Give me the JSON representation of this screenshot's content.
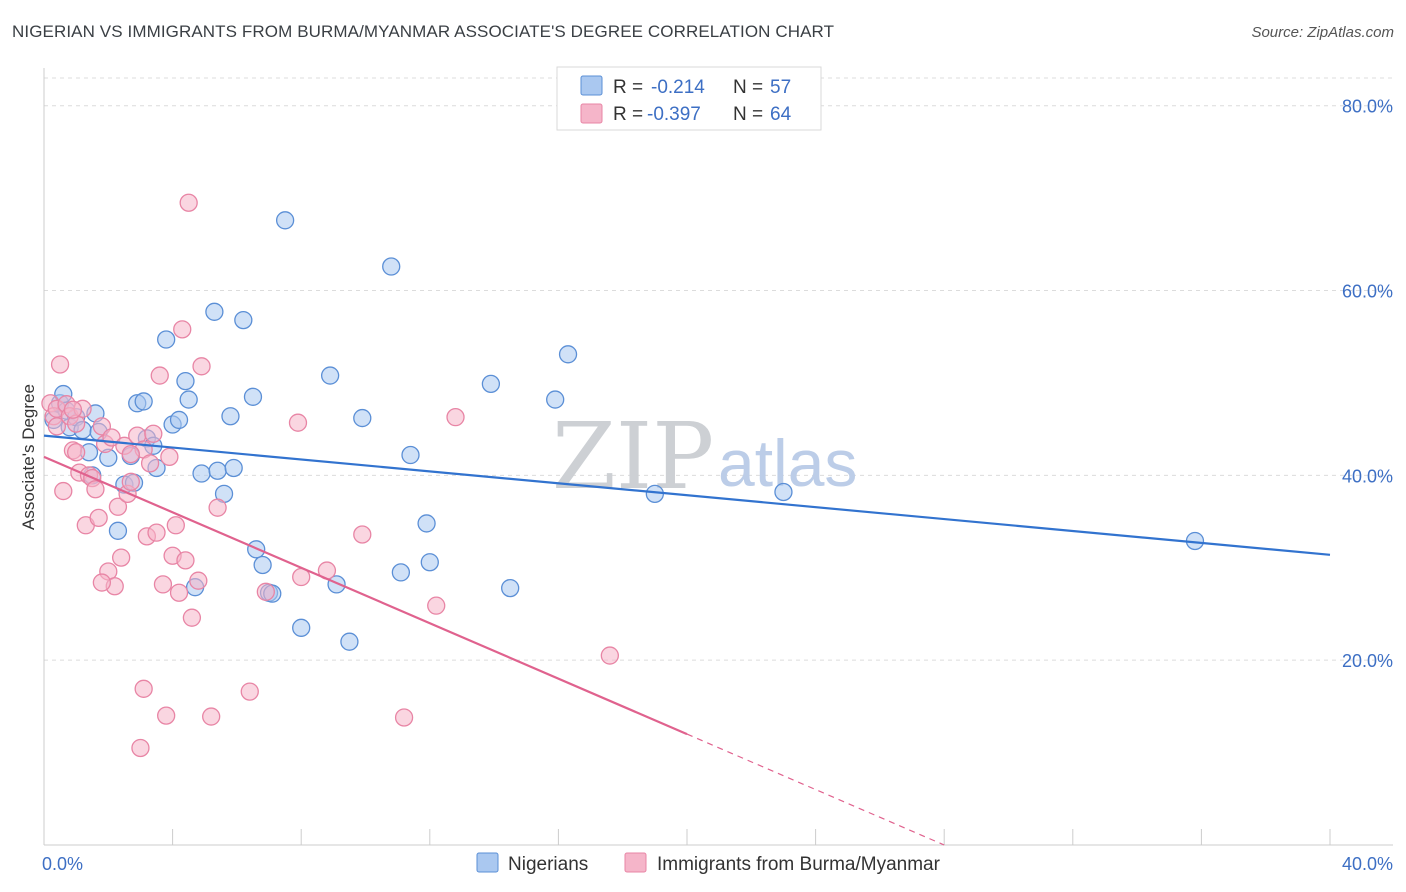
{
  "title": "NIGERIAN VS IMMIGRANTS FROM BURMA/MYANMAR ASSOCIATE'S DEGREE CORRELATION CHART",
  "source": "Source: ZipAtlas.com",
  "watermark": {
    "part1": "ZIP",
    "part2": "atlas"
  },
  "colors": {
    "blue_fill": "#aac8f0",
    "blue_stroke": "#5b8fd6",
    "blue_line": "#3273cf",
    "pink_fill": "#f5b5c9",
    "pink_stroke": "#e885a5",
    "pink_line": "#e0628e",
    "axis_text": "#3d6fc4",
    "grid": "#dcdcdc"
  },
  "chart_data": {
    "type": "scatter",
    "xlabel": "",
    "ylabel": "Associate's Degree",
    "xlim": [
      0,
      40
    ],
    "ylim": [
      0,
      83
    ],
    "x_tick_labels": [
      "0.0%",
      "40.0%"
    ],
    "y_ticks": [
      20,
      40,
      60,
      80
    ],
    "y_tick_labels": [
      "20.0%",
      "40.0%",
      "60.0%",
      "80.0%"
    ],
    "grid": true,
    "legend": {
      "position": "top-center",
      "rows": [
        {
          "r_label": "R =",
          "r_value": "-0.214",
          "n_label": "N =",
          "n_value": "57"
        },
        {
          "r_label": "R =",
          "r_value": "-0.397",
          "n_label": "N =",
          "n_value": "64"
        }
      ]
    },
    "series": [
      {
        "name": "Nigerians",
        "color": "blue",
        "trend": {
          "x0": 0.0,
          "y0": 44.3,
          "x1": 40.0,
          "y1": 31.4,
          "solid_until": 40.0
        },
        "points": [
          [
            0.3,
            46.0
          ],
          [
            0.5,
            47.8
          ],
          [
            0.6,
            48.8
          ],
          [
            0.7,
            47.0
          ],
          [
            0.8,
            45.2
          ],
          [
            1.0,
            46.3
          ],
          [
            1.2,
            44.9
          ],
          [
            1.4,
            42.5
          ],
          [
            1.5,
            40.0
          ],
          [
            1.7,
            44.7
          ],
          [
            2.0,
            41.9
          ],
          [
            2.3,
            34.0
          ],
          [
            2.5,
            39.0
          ],
          [
            2.7,
            42.1
          ],
          [
            2.9,
            47.8
          ],
          [
            3.1,
            48.0
          ],
          [
            3.2,
            44.0
          ],
          [
            3.4,
            43.2
          ],
          [
            3.5,
            40.8
          ],
          [
            3.8,
            54.7
          ],
          [
            4.0,
            45.5
          ],
          [
            4.2,
            46.0
          ],
          [
            4.4,
            50.2
          ],
          [
            4.5,
            48.2
          ],
          [
            4.9,
            40.2
          ],
          [
            5.3,
            57.7
          ],
          [
            5.4,
            40.5
          ],
          [
            5.6,
            38.0
          ],
          [
            5.8,
            46.4
          ],
          [
            5.9,
            40.8
          ],
          [
            6.2,
            56.8
          ],
          [
            6.5,
            48.5
          ],
          [
            6.6,
            32.0
          ],
          [
            6.8,
            30.3
          ],
          [
            7.0,
            27.3
          ],
          [
            7.1,
            27.2
          ],
          [
            7.5,
            67.6
          ],
          [
            8.0,
            23.5
          ],
          [
            8.9,
            50.8
          ],
          [
            9.1,
            28.2
          ],
          [
            9.5,
            22.0
          ],
          [
            9.9,
            46.2
          ],
          [
            10.8,
            62.6
          ],
          [
            11.1,
            29.5
          ],
          [
            11.4,
            42.2
          ],
          [
            11.9,
            34.8
          ],
          [
            12.0,
            30.6
          ],
          [
            13.9,
            49.9
          ],
          [
            14.5,
            27.8
          ],
          [
            15.9,
            48.2
          ],
          [
            16.3,
            53.1
          ],
          [
            19.0,
            38.0
          ],
          [
            23.0,
            38.2
          ],
          [
            35.8,
            32.9
          ],
          [
            2.8,
            39.2
          ],
          [
            1.6,
            46.7
          ],
          [
            4.7,
            27.9
          ]
        ]
      },
      {
        "name": "Immigrants from Burma/Myanmar",
        "color": "pink",
        "trend": {
          "x0": 0.0,
          "y0": 42.0,
          "x1": 40.0,
          "y1": -18.0,
          "solid_until": 20.0
        },
        "points": [
          [
            0.2,
            47.8
          ],
          [
            0.3,
            46.4
          ],
          [
            0.4,
            47.2
          ],
          [
            0.4,
            45.3
          ],
          [
            0.5,
            52.0
          ],
          [
            0.6,
            38.3
          ],
          [
            0.7,
            47.7
          ],
          [
            0.8,
            46.4
          ],
          [
            0.9,
            42.7
          ],
          [
            1.0,
            45.6
          ],
          [
            1.1,
            40.3
          ],
          [
            1.2,
            47.2
          ],
          [
            1.3,
            34.6
          ],
          [
            1.4,
            40.0
          ],
          [
            1.5,
            39.7
          ],
          [
            1.6,
            38.5
          ],
          [
            1.7,
            35.4
          ],
          [
            1.8,
            45.3
          ],
          [
            1.9,
            43.4
          ],
          [
            2.0,
            29.6
          ],
          [
            2.1,
            44.1
          ],
          [
            2.2,
            28.0
          ],
          [
            2.3,
            36.6
          ],
          [
            2.4,
            31.1
          ],
          [
            2.5,
            43.2
          ],
          [
            2.6,
            38.0
          ],
          [
            2.7,
            39.3
          ],
          [
            2.9,
            44.3
          ],
          [
            3.0,
            10.5
          ],
          [
            3.1,
            42.8
          ],
          [
            3.1,
            16.9
          ],
          [
            3.2,
            33.4
          ],
          [
            3.3,
            41.3
          ],
          [
            3.4,
            44.5
          ],
          [
            3.5,
            33.8
          ],
          [
            3.6,
            50.8
          ],
          [
            3.7,
            28.2
          ],
          [
            3.8,
            14.0
          ],
          [
            3.9,
            42.0
          ],
          [
            4.0,
            31.3
          ],
          [
            4.1,
            34.6
          ],
          [
            4.2,
            27.3
          ],
          [
            4.3,
            55.8
          ],
          [
            4.4,
            30.8
          ],
          [
            4.5,
            69.5
          ],
          [
            4.6,
            24.6
          ],
          [
            4.8,
            28.6
          ],
          [
            4.9,
            51.8
          ],
          [
            5.2,
            13.9
          ],
          [
            5.4,
            36.5
          ],
          [
            6.4,
            16.6
          ],
          [
            6.9,
            27.4
          ],
          [
            7.9,
            45.7
          ],
          [
            8.0,
            29.0
          ],
          [
            8.8,
            29.7
          ],
          [
            9.9,
            33.6
          ],
          [
            11.2,
            13.8
          ],
          [
            12.2,
            25.9
          ],
          [
            12.8,
            46.3
          ],
          [
            17.6,
            20.5
          ],
          [
            1.0,
            42.5
          ],
          [
            2.7,
            42.3
          ],
          [
            0.9,
            47.1
          ],
          [
            1.8,
            28.4
          ]
        ]
      }
    ]
  },
  "bottom_legend": [
    {
      "label": "Nigerians",
      "color": "blue"
    },
    {
      "label": "Immigrants from Burma/Myanmar",
      "color": "pink"
    }
  ]
}
